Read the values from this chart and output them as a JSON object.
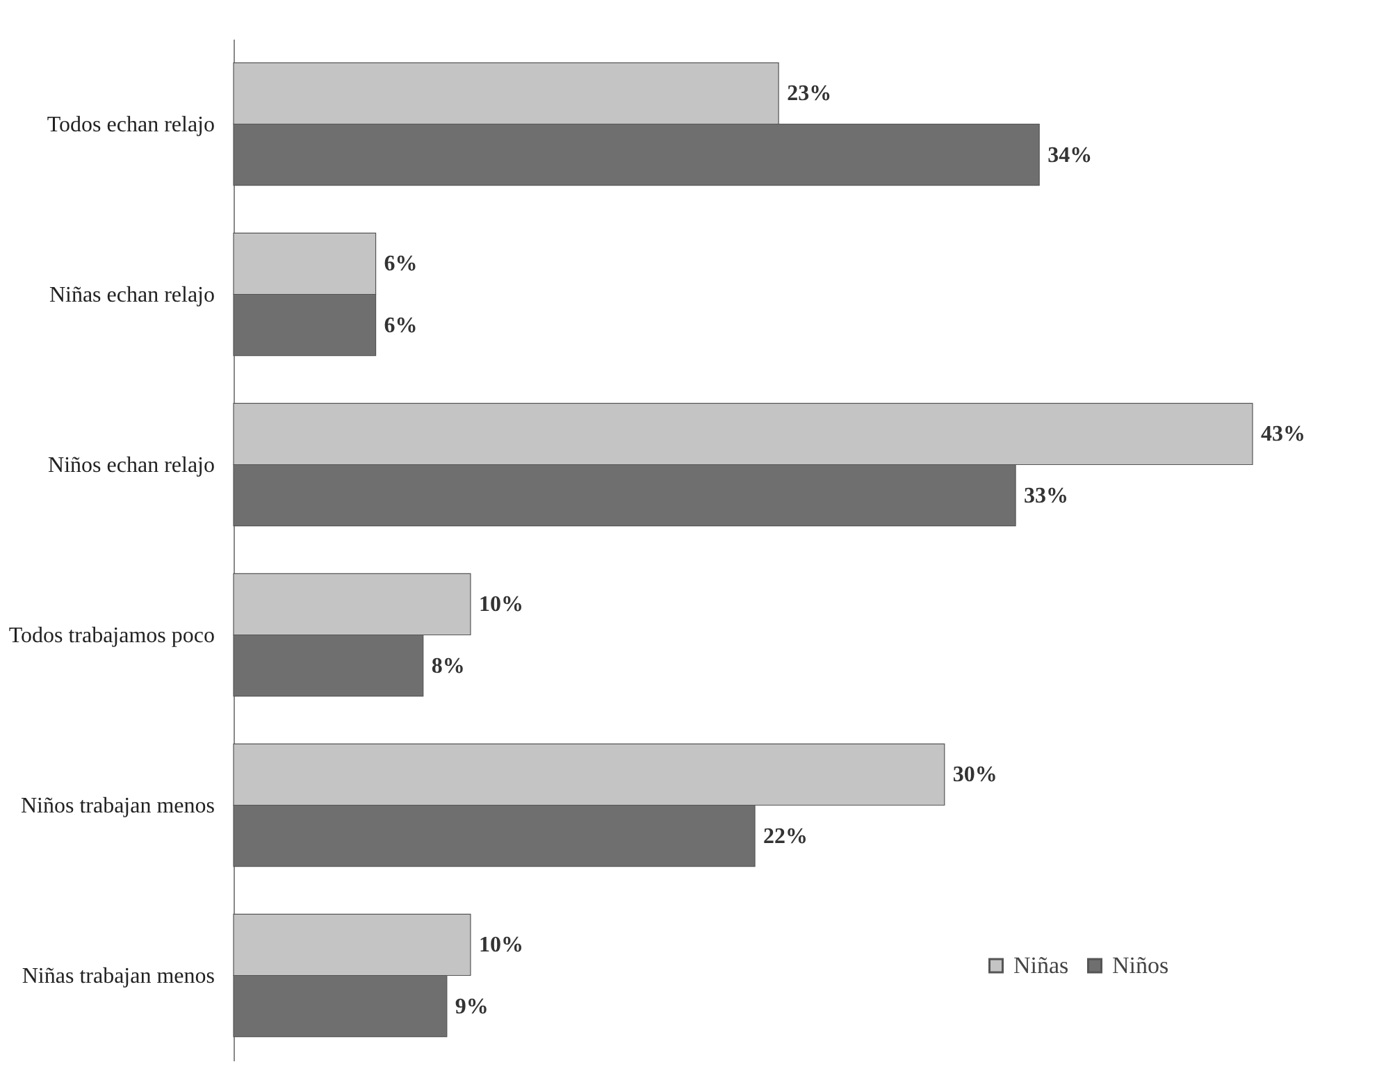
{
  "chart_data": {
    "type": "bar",
    "orientation": "horizontal",
    "categories": [
      "Todos echan relajo",
      "Niñas echan relajo",
      "Niños echan relajo",
      "Todos trabajamos poco",
      "Niños trabajan menos",
      "Niñas trabajan menos"
    ],
    "series": [
      {
        "name": "Niñas",
        "color": "#c4c4c4",
        "values": [
          23,
          6,
          43,
          10,
          30,
          10
        ],
        "value_labels": [
          "23%",
          "6%",
          "43%",
          "10%",
          "30%",
          "10%"
        ]
      },
      {
        "name": "Niños",
        "color": "#6f6f6f",
        "values": [
          34,
          6,
          33,
          8,
          22,
          9
        ],
        "value_labels": [
          "34%",
          "6%",
          "33%",
          "8%",
          "22%",
          "9%"
        ]
      }
    ],
    "legend": "bottom right"
  }
}
